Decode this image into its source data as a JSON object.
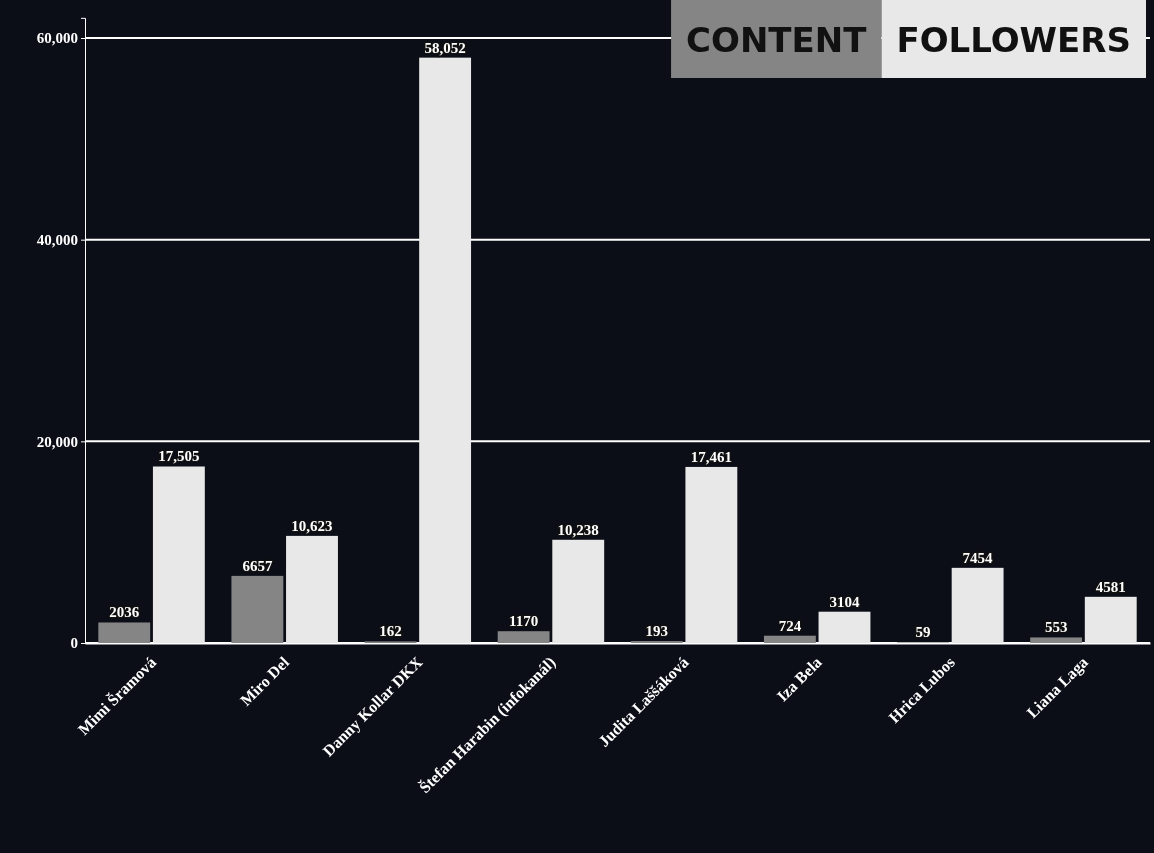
{
  "chart_data": {
    "type": "bar",
    "categories": [
      "Mimi Šramová",
      "Miro Del",
      "Danny Kollar DKX",
      "Štefan Harabin (infokanál)",
      "Judita Laššáková",
      "Iza Bela",
      "Hrica Lubos",
      "Liana Laga"
    ],
    "series": [
      {
        "name": "CONTENT",
        "color": "#858585",
        "values": [
          2036,
          6657,
          162,
          1170,
          193,
          724,
          59,
          553
        ]
      },
      {
        "name": "FOLLOWERS",
        "color": "#e8e8e8",
        "values": [
          17505,
          10623,
          58052,
          10238,
          17461,
          3104,
          7454,
          4581
        ]
      }
    ],
    "value_labels": [
      [
        "2036",
        "6657",
        "162",
        "1170",
        "193",
        "724",
        "59",
        "553"
      ],
      [
        "17,505",
        "10,623",
        "58,052",
        "10,238",
        "17,461",
        "3104",
        "7454",
        "4581"
      ]
    ],
    "ylim": [
      0,
      62000
    ],
    "yticks": [
      {
        "value": 0,
        "label": "0"
      },
      {
        "value": 20000,
        "label": "20,000"
      },
      {
        "value": 40000,
        "label": "40,000"
      },
      {
        "value": 60000,
        "label": "60,000"
      }
    ],
    "grid": "y",
    "legend": "top right"
  }
}
